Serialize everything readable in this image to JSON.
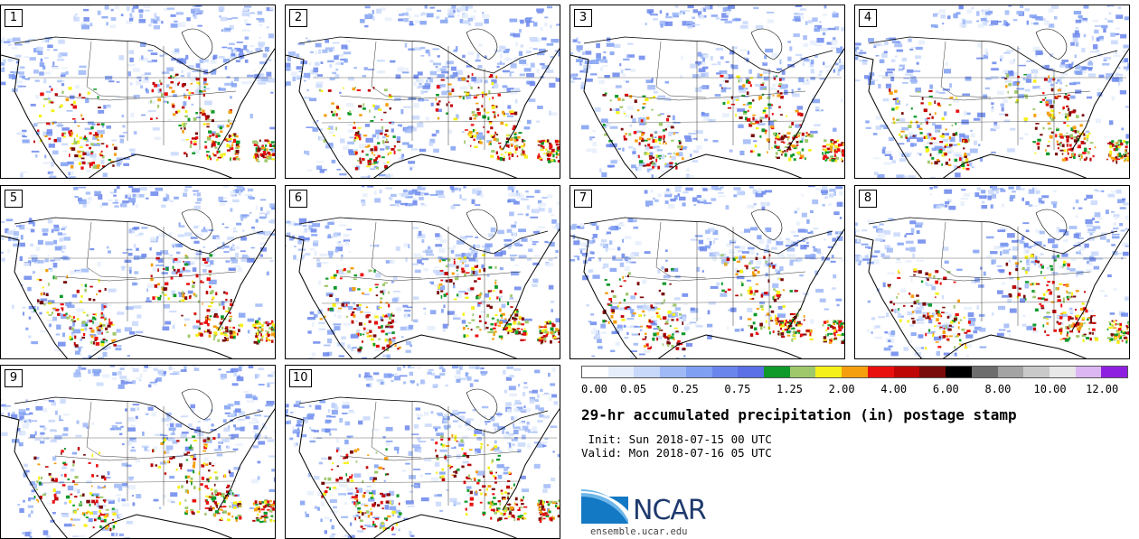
{
  "panels": [
    {
      "label": "1"
    },
    {
      "label": "2"
    },
    {
      "label": "3"
    },
    {
      "label": "4"
    },
    {
      "label": "5"
    },
    {
      "label": "6"
    },
    {
      "label": "7"
    },
    {
      "label": "8"
    },
    {
      "label": "9"
    },
    {
      "label": "10"
    }
  ],
  "colorbar": {
    "colors": [
      "#ffffff",
      "#e6eefc",
      "#c8d8fb",
      "#9fb9f7",
      "#7f9ff2",
      "#6a86ec",
      "#5b6fe6",
      "#0f9a2a",
      "#9fc86b",
      "#f6f01a",
      "#f59f0f",
      "#ea0f0f",
      "#bf0606",
      "#7a0b0b",
      "#000000",
      "#6d6d6d",
      "#a3a3a3",
      "#c9c9c9",
      "#e8e8e8",
      "#dcb6f2",
      "#8f1fe0"
    ],
    "labels": [
      "0.00",
      "0.05",
      "0.25",
      "0.75",
      "1.25",
      "2.00",
      "4.00",
      "6.00",
      "8.00",
      "10.00",
      "12.00"
    ]
  },
  "title": "29-hr accumulated precipitation (in) postage stamp",
  "init": " Init: Sun 2018-07-15 00 UTC",
  "valid": "Valid: Mon 2018-07-16 05 UTC",
  "logo": {
    "text": "NCAR"
  },
  "site": "ensemble.ucar.edu"
}
